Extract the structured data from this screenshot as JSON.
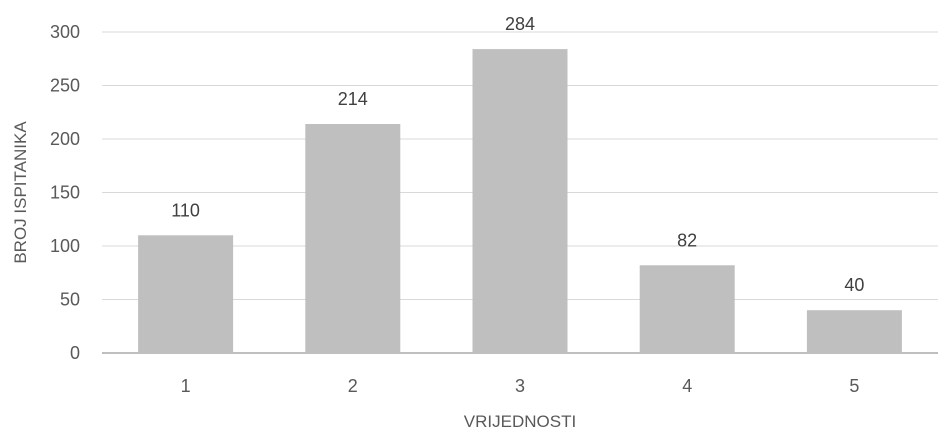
{
  "chart_data": {
    "type": "bar",
    "categories": [
      "1",
      "2",
      "3",
      "4",
      "5"
    ],
    "values": [
      110,
      214,
      284,
      82,
      40
    ],
    "data_labels": [
      "110",
      "214",
      "284",
      "82",
      "40"
    ],
    "title": "",
    "xlabel": "VRIJEDNOSTI",
    "ylabel": "BROJ ISPITANIKA",
    "ylim": [
      0,
      300
    ],
    "yticks": [
      "0",
      "50",
      "100",
      "150",
      "200",
      "250",
      "300"
    ],
    "grid": true,
    "legend": "none",
    "bar_color": "#bfbfbf",
    "grid_color": "#d9d9d9"
  }
}
